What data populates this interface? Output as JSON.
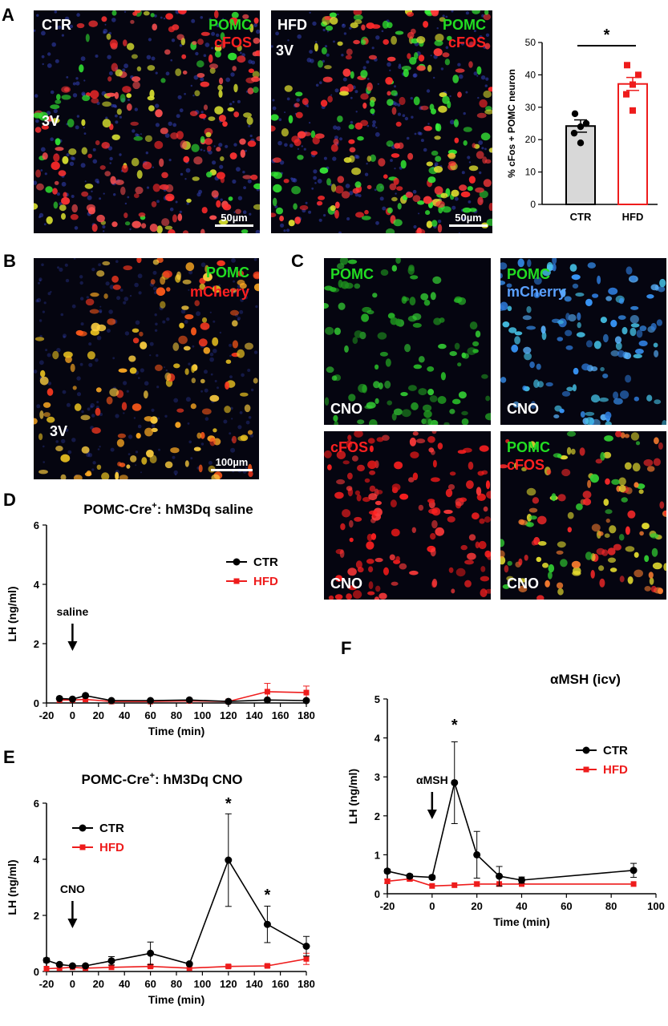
{
  "panel_letters": {
    "a": "A",
    "b": "B",
    "c": "C",
    "d": "D",
    "e": "E",
    "f": "F"
  },
  "panelA": {
    "left": {
      "group": "CTR",
      "ch1": "POMC",
      "ch2": "cFOS",
      "region": "3V",
      "scale": "50µm"
    },
    "right": {
      "group": "HFD",
      "ch1": "POMC",
      "ch2": "cFOS",
      "region": "3V",
      "scale": "50µm"
    }
  },
  "panelB": {
    "ch1": "POMC",
    "ch2": "mCherry",
    "region": "3V",
    "scale": "100µm"
  },
  "panelC": {
    "tl": {
      "ch1": "POMC",
      "tag": "CNO"
    },
    "tr": {
      "ch1": "POMC",
      "ch2": "mCherry",
      "tag": "CNO"
    },
    "bl": {
      "ch1": "cFOS",
      "tag": "CNO"
    },
    "br": {
      "ch1": "POMC",
      "ch2": "cFOS",
      "tag": "CNO"
    }
  },
  "colors": {
    "ctr": "#000000",
    "hfd": "#ee1c1c",
    "pomc": "#22dd22",
    "cfos": "#ff2020",
    "mcherry_c": "#5aa0ff"
  },
  "chart_data": [
    {
      "id": "A",
      "type": "bar",
      "ylabel": "% cFos + POMC neuron",
      "categories": [
        "CTR",
        "HFD"
      ],
      "values": [
        24.2,
        37.2
      ],
      "errors": [
        1.9,
        2.0
      ],
      "points": [
        [
          28,
          25,
          24,
          22,
          19
        ],
        [
          43,
          40,
          37,
          34,
          29
        ]
      ],
      "ylim": [
        0,
        50
      ],
      "yticks": [
        0,
        10,
        20,
        30,
        40,
        50
      ],
      "significance": "*"
    },
    {
      "id": "D",
      "type": "line",
      "title": "POMC-Cre",
      "title_sup": "+",
      "title_rest": ": hM3Dq saline",
      "xlabel": "Time (min)",
      "ylabel": "LH (ng/ml)",
      "xlim": [
        -20,
        180
      ],
      "ylim": [
        0,
        6
      ],
      "xticks": [
        -20,
        0,
        20,
        40,
        60,
        80,
        100,
        120,
        140,
        160,
        180
      ],
      "yticks": [
        0,
        2,
        4,
        6
      ],
      "arrow_label": "saline",
      "arrow_x": 0,
      "legend": [
        "CTR",
        "HFD"
      ],
      "series": [
        {
          "name": "CTR",
          "x": [
            -10,
            0,
            10,
            30,
            60,
            90,
            120,
            150,
            180
          ],
          "y": [
            0.15,
            0.13,
            0.25,
            0.08,
            0.08,
            0.1,
            0.05,
            0.1,
            0.08
          ],
          "err": [
            0.03,
            0.03,
            0.05,
            0.02,
            0.02,
            0.02,
            0.02,
            0.03,
            0.03
          ]
        },
        {
          "name": "HFD",
          "x": [
            -10,
            0,
            10,
            30,
            60,
            90,
            120,
            150,
            180
          ],
          "y": [
            0.1,
            0.1,
            0.12,
            0.05,
            0.05,
            0.07,
            0.05,
            0.38,
            0.35
          ],
          "err": [
            0.02,
            0.02,
            0.03,
            0.02,
            0.02,
            0.02,
            0.02,
            0.28,
            0.22
          ]
        }
      ]
    },
    {
      "id": "E",
      "type": "line",
      "title": "POMC-Cre",
      "title_sup": "+",
      "title_rest": ": hM3Dq CNO",
      "xlabel": "Time (min)",
      "ylabel": "LH (ng/ml)",
      "xlim": [
        -20,
        180
      ],
      "ylim": [
        0,
        6
      ],
      "xticks": [
        -20,
        0,
        20,
        40,
        60,
        80,
        100,
        120,
        140,
        160,
        180
      ],
      "yticks": [
        0,
        2,
        4,
        6
      ],
      "arrow_label": "CNO",
      "arrow_x": 0,
      "legend": [
        "CTR",
        "HFD"
      ],
      "significance": [
        {
          "x": 120,
          "y": 5.8,
          "label": "*"
        },
        {
          "x": 150,
          "y": 2.55,
          "label": "*"
        }
      ],
      "series": [
        {
          "name": "CTR",
          "x": [
            -20,
            -10,
            0,
            10,
            30,
            60,
            90,
            120,
            150,
            180
          ],
          "y": [
            0.4,
            0.25,
            0.2,
            0.2,
            0.38,
            0.65,
            0.27,
            3.97,
            1.68,
            0.9
          ],
          "err": [
            0.08,
            0.05,
            0.05,
            0.05,
            0.15,
            0.4,
            0.05,
            1.65,
            0.65,
            0.35
          ]
        },
        {
          "name": "HFD",
          "x": [
            -20,
            -10,
            0,
            10,
            30,
            60,
            90,
            120,
            150,
            180
          ],
          "y": [
            0.1,
            0.12,
            0.15,
            0.12,
            0.15,
            0.18,
            0.12,
            0.18,
            0.2,
            0.45
          ],
          "err": [
            0.03,
            0.03,
            0.03,
            0.03,
            0.03,
            0.05,
            0.03,
            0.05,
            0.05,
            0.2
          ]
        }
      ]
    },
    {
      "id": "F",
      "type": "line",
      "title": "αMSH (icv)",
      "xlabel": "Time (min)",
      "ylabel": "LH (ng/ml)",
      "xlim": [
        -20,
        100
      ],
      "ylim": [
        0,
        5
      ],
      "xticks": [
        -20,
        0,
        20,
        40,
        60,
        80,
        100
      ],
      "yticks": [
        0,
        1,
        2,
        3,
        4,
        5
      ],
      "arrow_label": "αMSH",
      "arrow_x": 0,
      "legend": [
        "CTR",
        "HFD"
      ],
      "significance": [
        {
          "x": 10,
          "y": 4.2,
          "label": "*"
        }
      ],
      "series": [
        {
          "name": "CTR",
          "x": [
            -20,
            -10,
            0,
            10,
            20,
            30,
            40,
            90
          ],
          "y": [
            0.58,
            0.45,
            0.42,
            2.85,
            1.0,
            0.45,
            0.35,
            0.6
          ],
          "err": [
            0.05,
            0.05,
            0.05,
            1.05,
            0.6,
            0.25,
            0.08,
            0.18
          ]
        },
        {
          "name": "HFD",
          "x": [
            -20,
            -10,
            0,
            10,
            20,
            30,
            40,
            90
          ],
          "y": [
            0.32,
            0.38,
            0.2,
            0.22,
            0.25,
            0.25,
            0.25,
            0.25
          ],
          "err": [
            0.05,
            0.05,
            0.03,
            0.03,
            0.05,
            0.04,
            0.03,
            0.03
          ]
        }
      ]
    }
  ]
}
